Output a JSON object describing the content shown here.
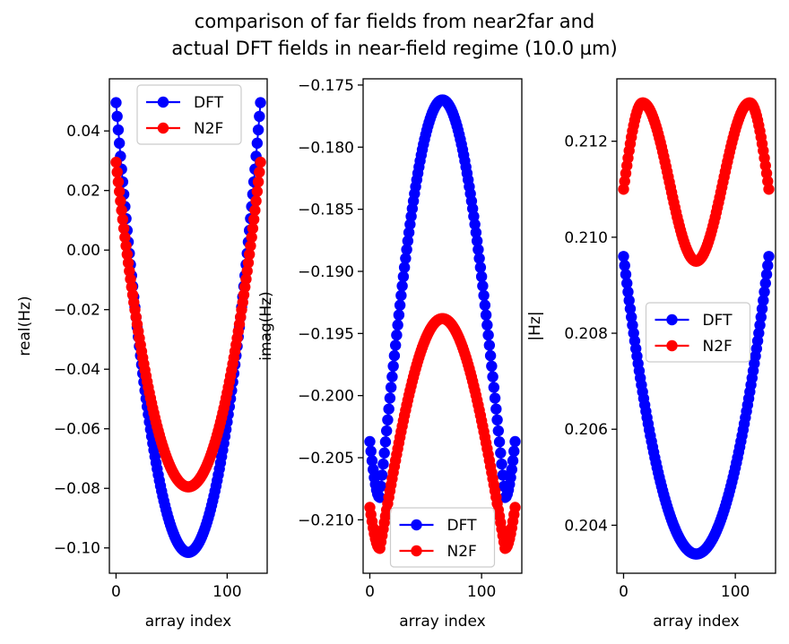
{
  "figure": {
    "title_line1": "comparison of far fields from near2far and",
    "title_line2": "actual DFT fields in near-field regime (10.0 µm)"
  },
  "colors": {
    "DFT": "#0000ff",
    "N2F": "#ff0000"
  },
  "chart_data": [
    {
      "type": "scatter",
      "xlabel": "array index",
      "ylabel": "real(Hz)",
      "xlim": [
        -6,
        136
      ],
      "ylim": [
        -0.1085,
        0.0575
      ],
      "x_ticks": [
        "0",
        "100"
      ],
      "x_tick_values": [
        0,
        100
      ],
      "y_ticks": [
        "0.04",
        "0.02",
        "0.00",
        "−0.02",
        "−0.04",
        "−0.06",
        "−0.08",
        "−0.10"
      ],
      "y_tick_values": [
        0.04,
        0.02,
        0.0,
        -0.02,
        -0.04,
        -0.06,
        -0.08,
        -0.1
      ],
      "grid": false,
      "legend": {
        "position": "upper center",
        "entries": [
          "DFT",
          "N2F"
        ]
      },
      "n_points": 131,
      "series": [
        {
          "name": "DFT",
          "color": "#0000ff",
          "shape": "parabola",
          "edge": 0.0495,
          "center": -0.1015
        },
        {
          "name": "N2F",
          "color": "#ff0000",
          "shape": "parabola",
          "edge": 0.0295,
          "center": -0.0795
        }
      ]
    },
    {
      "type": "scatter",
      "xlabel": "array index",
      "ylabel": "imag(Hz)",
      "xlim": [
        -6,
        136
      ],
      "ylim": [
        -0.2143,
        -0.1745
      ],
      "x_ticks": [
        "0",
        "100"
      ],
      "x_tick_values": [
        0,
        100
      ],
      "y_ticks": [
        "−0.175",
        "−0.180",
        "−0.185",
        "−0.190",
        "−0.195",
        "−0.200",
        "−0.205",
        "−0.210"
      ],
      "y_tick_values": [
        -0.175,
        -0.18,
        -0.185,
        -0.19,
        -0.195,
        -0.2,
        -0.205,
        -0.21
      ],
      "grid": false,
      "legend": {
        "position": "lower center",
        "entries": [
          "DFT",
          "N2F"
        ]
      },
      "n_points": 131,
      "series": [
        {
          "name": "DFT",
          "color": "#0000ff",
          "shape": "hump",
          "edge": -0.2037,
          "min": -0.2082,
          "peak": -0.1762,
          "min_index": 9
        },
        {
          "name": "N2F",
          "color": "#ff0000",
          "shape": "hump",
          "edge": -0.209,
          "min": -0.2123,
          "peak": -0.1938,
          "min_index": 9
        }
      ]
    },
    {
      "type": "scatter",
      "xlabel": "array index",
      "ylabel": "|Hz|",
      "xlim": [
        -6,
        136
      ],
      "ylim": [
        0.203,
        0.2133
      ],
      "x_ticks": [
        "0",
        "100"
      ],
      "x_tick_values": [
        0,
        100
      ],
      "y_ticks": [
        "0.212",
        "0.210",
        "0.208",
        "0.206",
        "0.204"
      ],
      "y_tick_values": [
        0.212,
        0.21,
        0.208,
        0.206,
        0.204
      ],
      "grid": false,
      "legend": {
        "position": "center",
        "entries": [
          "DFT",
          "N2F"
        ]
      },
      "n_points": 131,
      "series": [
        {
          "name": "DFT",
          "color": "#0000ff",
          "shape": "parabola",
          "edge": 0.2096,
          "center": 0.2034
        },
        {
          "name": "N2F",
          "color": "#ff0000",
          "shape": "double-hump",
          "edge": 0.211,
          "center": 0.2095,
          "peak": 0.2128,
          "peak_index": 17
        }
      ]
    }
  ]
}
